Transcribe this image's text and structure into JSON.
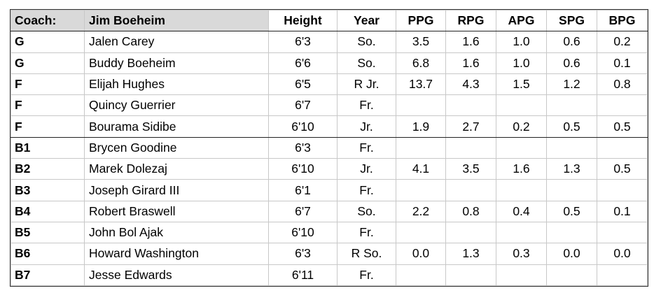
{
  "table": {
    "header": [
      "Coach:",
      "Jim Boeheim",
      "Height",
      "Year",
      "PPG",
      "RPG",
      "APG",
      "SPG",
      "BPG"
    ],
    "rows": [
      [
        "G",
        "Jalen Carey",
        "6'3",
        "So.",
        "3.5",
        "1.6",
        "1.0",
        "0.6",
        "0.2"
      ],
      [
        "G",
        "Buddy Boeheim",
        "6'6",
        "So.",
        "6.8",
        "1.6",
        "1.0",
        "0.6",
        "0.1"
      ],
      [
        "F",
        "Elijah Hughes",
        "6'5",
        "R Jr.",
        "13.7",
        "4.3",
        "1.5",
        "1.2",
        "0.8"
      ],
      [
        "F",
        "Quincy Guerrier",
        "6'7",
        "Fr.",
        null,
        null,
        null,
        null,
        null
      ],
      [
        "F",
        "Bourama Sidibe",
        "6'10",
        "Jr.",
        "1.9",
        "2.7",
        "0.2",
        "0.5",
        "0.5"
      ],
      [
        "B1",
        "Brycen Goodine",
        "6'3",
        "Fr.",
        null,
        null,
        null,
        null,
        null
      ],
      [
        "B2",
        "Marek Dolezaj",
        "6'10",
        "Jr.",
        "4.1",
        "3.5",
        "1.6",
        "1.3",
        "0.5"
      ],
      [
        "B3",
        "Joseph Girard III",
        "6'1",
        "Fr.",
        null,
        null,
        null,
        null,
        null
      ],
      [
        "B4",
        "Robert Braswell",
        "6'7",
        "So.",
        "2.2",
        "0.8",
        "0.4",
        "0.5",
        "0.1"
      ],
      [
        "B5",
        "John Bol Ajak",
        "6'10",
        "Fr.",
        null,
        null,
        null,
        null,
        null
      ],
      [
        "B6",
        "Howard Washington",
        "6'3",
        "R So.",
        "0.0",
        "1.3",
        "0.3",
        "0.0",
        "0.0"
      ],
      [
        "B7",
        "Jesse Edwards",
        "6'11",
        "Fr.",
        null,
        null,
        null,
        null,
        null
      ]
    ]
  }
}
